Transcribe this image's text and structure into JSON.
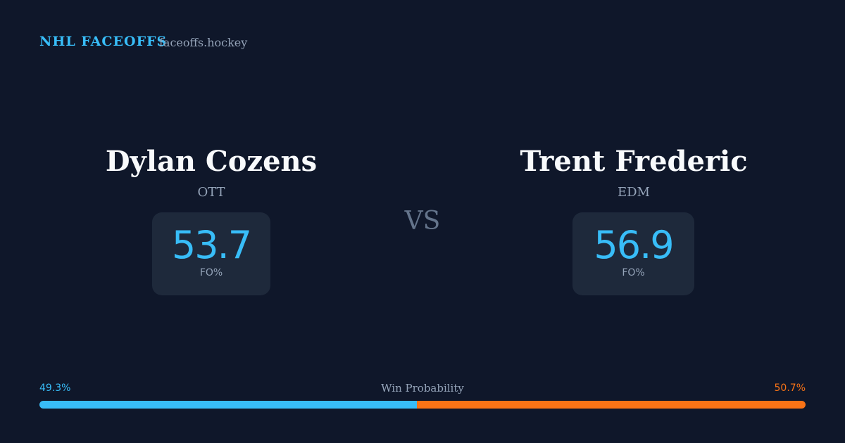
{
  "header": {
    "brand": "NHL FACEOFFS",
    "site": "faceoffs.hockey"
  },
  "matchup": {
    "players": [
      {
        "name": "Dylan Cozens",
        "team": "OTT",
        "stat_value": 53.7,
        "stat_label": "FO%"
      },
      {
        "name": "Trent Frederic",
        "team": "EDM",
        "stat_value": 56.9,
        "stat_label": "FO%"
      }
    ],
    "vs": "VS"
  },
  "win_probability": {
    "label": "Win Probability",
    "left": {
      "value": 49.3,
      "label": "49.3%",
      "color": "#38bdf8"
    },
    "right": {
      "value": 50.7,
      "label": "50.7%",
      "color": "#f97316"
    }
  }
}
